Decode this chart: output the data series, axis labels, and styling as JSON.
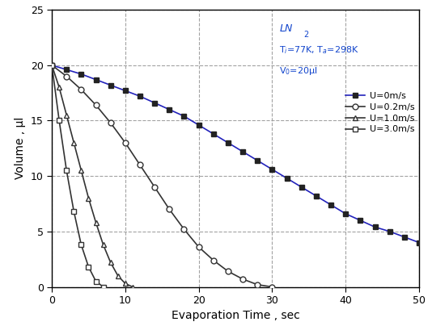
{
  "xlabel": "Evaporation Time , sec",
  "ylabel": "Volume , μl",
  "xlim": [
    0,
    50
  ],
  "ylim": [
    0,
    25
  ],
  "xticks": [
    0,
    10,
    20,
    30,
    40,
    50
  ],
  "yticks": [
    0,
    5,
    10,
    15,
    20,
    25
  ],
  "series": [
    {
      "label": "U=0m/s",
      "line_color": "#2222bb",
      "marker": "s",
      "markerfacecolor": "#222222",
      "markeredgecolor": "#222222",
      "x": [
        0,
        2,
        4,
        6,
        8,
        10,
        12,
        14,
        16,
        18,
        20,
        22,
        24,
        26,
        28,
        30,
        32,
        34,
        36,
        38,
        40,
        42,
        44,
        46,
        48,
        50
      ],
      "y": [
        20,
        19.6,
        19.2,
        18.7,
        18.2,
        17.7,
        17.2,
        16.6,
        16.0,
        15.4,
        14.6,
        13.8,
        13.0,
        12.2,
        11.4,
        10.6,
        9.8,
        9.0,
        8.2,
        7.4,
        6.6,
        6.0,
        5.4,
        5.0,
        4.5,
        4.0
      ]
    },
    {
      "label": "U=0.2m/s",
      "line_color": "#333333",
      "marker": "o",
      "markerfacecolor": "white",
      "markeredgecolor": "#333333",
      "x": [
        0,
        2,
        4,
        6,
        8,
        10,
        12,
        14,
        16,
        18,
        20,
        22,
        24,
        26,
        28,
        30
      ],
      "y": [
        20,
        19.0,
        17.8,
        16.4,
        14.8,
        13.0,
        11.0,
        9.0,
        7.0,
        5.2,
        3.6,
        2.4,
        1.4,
        0.7,
        0.2,
        0.0
      ]
    },
    {
      "label": "U=1.0m/s",
      "line_color": "#333333",
      "marker": "^",
      "markerfacecolor": "white",
      "markeredgecolor": "#333333",
      "x": [
        0,
        1,
        2,
        3,
        4,
        5,
        6,
        7,
        8,
        9,
        10,
        11
      ],
      "y": [
        20,
        18.0,
        15.5,
        13.0,
        10.5,
        8.0,
        5.8,
        3.8,
        2.2,
        1.0,
        0.3,
        0.0
      ]
    },
    {
      "label": "U=3.0m/s",
      "line_color": "#333333",
      "marker": "s",
      "markerfacecolor": "white",
      "markeredgecolor": "#333333",
      "x": [
        0,
        1,
        2,
        3,
        4,
        5,
        6,
        7
      ],
      "y": [
        20,
        15.0,
        10.5,
        6.8,
        3.8,
        1.8,
        0.5,
        0.0
      ]
    }
  ],
  "ann_color": "#1144cc",
  "grid_color": "#999999",
  "background_color": "#ffffff",
  "fig_width": 5.34,
  "fig_height": 4.04,
  "dpi": 100
}
